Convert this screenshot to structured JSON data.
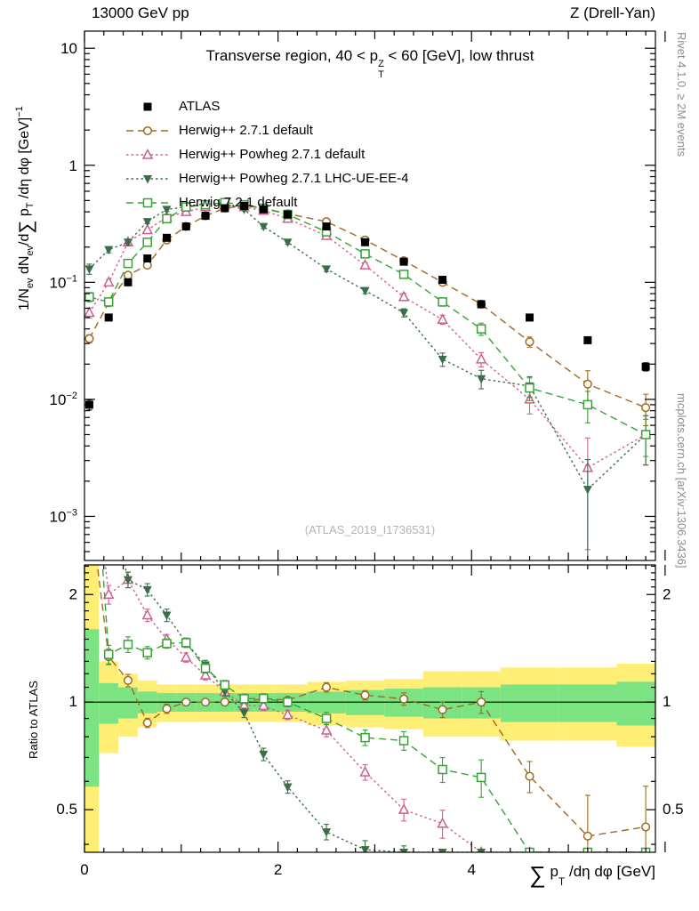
{
  "header": {
    "left": "13000 GeV pp",
    "right": "Z (Drell-Yan)"
  },
  "titles": {
    "pre": "Transverse region, 40 < p",
    "sup": "Z",
    "sub": "T",
    "post": " < 60 [GeV], low thrust"
  },
  "watermark": "(ATLAS_2019_I1736531)",
  "ratio_label": "Ratio to ATLAS",
  "side_notes": {
    "top": "Rivet 4.1.0, ≥ 2M events",
    "bottom": "mcplots.cern.ch [arXiv:1306.3436]"
  },
  "ylabel_parts": {
    "p1": "1/N",
    "s1": "ev",
    "p2": " dN",
    "s2": "ev",
    "p3": "/d",
    "sum": "∑",
    "p4": " p",
    "s3": "T",
    "p5": " /dη dφ  [GeV]",
    "e1": "−1"
  },
  "xlabel_parts": {
    "sum": "∑",
    "p": " p",
    "sub": "T",
    "rest": " /dη dφ [GeV]"
  },
  "chart_data": {
    "type": "line",
    "title": "Transverse region, 40 < pT^Z < 60 [GeV], low thrust",
    "xlabel": "sum pT /deta dphi [GeV]",
    "ylabel": "1/N_ev dN_ev/d sum pT /deta dphi [GeV]^-1",
    "ratio_ylabel": "Ratio to ATLAS",
    "legend_position": "top-left-inside",
    "grid": false,
    "x": [
      0.05,
      0.25,
      0.45,
      0.65,
      0.85,
      1.05,
      1.25,
      1.45,
      1.65,
      1.85,
      2.1,
      2.5,
      2.9,
      3.3,
      3.7,
      4.1,
      4.6,
      5.2,
      5.8
    ],
    "x_axis": {
      "min": 0,
      "max": 5.9,
      "label_ticks": [
        0,
        2,
        4
      ],
      "minor_step": 0.2
    },
    "main_axis": {
      "scale": "log",
      "min": 0.00042,
      "max": 14,
      "ticks": [
        {
          "v": 10,
          "base": "10",
          "exp": ""
        },
        {
          "v": 1,
          "base": "1",
          "exp": ""
        },
        {
          "v": 0.1,
          "base": "10",
          "exp": "−1"
        },
        {
          "v": 0.01,
          "base": "10",
          "exp": "−2"
        },
        {
          "v": 0.001,
          "base": "10",
          "exp": "−3"
        }
      ]
    },
    "ratio_axis": {
      "scale": "log",
      "min": 0.38,
      "max": 2.42,
      "ticks": [
        {
          "v": 0.5,
          "label": "0.5"
        },
        {
          "v": 1,
          "label": "1"
        },
        {
          "v": 2,
          "label": "2"
        }
      ]
    },
    "series": [
      {
        "id": "atlas",
        "label": "ATLAS",
        "color": "#000000",
        "marker": "square-filled",
        "line": "none",
        "is_reference": true,
        "values": [
          0.009,
          0.05,
          0.1,
          0.16,
          0.24,
          0.3,
          0.37,
          0.43,
          0.45,
          0.42,
          0.38,
          0.3,
          0.22,
          0.15,
          0.105,
          0.065,
          0.05,
          0.032,
          0.019
        ],
        "rel_err": [
          0.1,
          0.05,
          0.04,
          0.03,
          0.03,
          0.03,
          0.03,
          0.03,
          0.03,
          0.03,
          0.03,
          0.03,
          0.03,
          0.03,
          0.04,
          0.04,
          0.05,
          0.06,
          0.08
        ]
      },
      {
        "id": "herwigpp-271",
        "label": "Herwig++ 2.7.1 default",
        "color": "#a06820",
        "marker": "circle-open",
        "line": "dashed",
        "values": [
          0.033,
          0.067,
          0.115,
          0.14,
          0.23,
          0.3,
          0.37,
          0.43,
          0.45,
          0.43,
          0.385,
          0.33,
          0.23,
          0.153,
          0.1,
          0.065,
          0.031,
          0.0135,
          0.0085
        ],
        "rel_err": [
          0.08,
          0.05,
          0.04,
          0.03,
          0.03,
          0.02,
          0.02,
          0.02,
          0.02,
          0.02,
          0.02,
          0.03,
          0.03,
          0.04,
          0.05,
          0.07,
          0.1,
          0.3,
          0.3
        ]
      },
      {
        "id": "herwigpp-powheg-271",
        "label": "Herwig++ Powheg 2.7.1 default",
        "color": "#cf5f8e",
        "marker": "triangle-up-open",
        "line": "dotted",
        "values": [
          0.055,
          0.1,
          0.22,
          0.28,
          0.36,
          0.4,
          0.44,
          0.46,
          0.44,
          0.41,
          0.35,
          0.25,
          0.14,
          0.075,
          0.048,
          0.022,
          0.01,
          0.0026,
          0.005
        ],
        "rel_err": [
          0.1,
          0.06,
          0.05,
          0.04,
          0.03,
          0.03,
          0.03,
          0.03,
          0.03,
          0.03,
          0.03,
          0.04,
          0.05,
          0.07,
          0.09,
          0.14,
          0.25,
          0.8,
          0.45
        ]
      },
      {
        "id": "herwigpp-powheg-ee4",
        "label": "Herwig++ Powheg 2.7.1 LHC-UE-EE-4",
        "color": "#3b6e47",
        "marker": "triangle-down-filled",
        "line": "dotted",
        "values": [
          0.13,
          0.19,
          0.22,
          0.33,
          0.42,
          0.44,
          0.47,
          0.46,
          0.42,
          0.3,
          0.22,
          0.13,
          0.085,
          0.055,
          0.022,
          0.015,
          0.013,
          0.0017,
          0.005
        ],
        "rel_err": [
          0.1,
          0.06,
          0.05,
          0.04,
          0.04,
          0.03,
          0.03,
          0.03,
          0.03,
          0.04,
          0.04,
          0.05,
          0.06,
          0.08,
          0.13,
          0.18,
          0.2,
          0.8,
          0.45
        ]
      },
      {
        "id": "herwig-721",
        "label": "Herwig 7.2.1 default",
        "color": "#36a336",
        "marker": "square-open",
        "line": "dashed",
        "values": [
          0.075,
          0.068,
          0.145,
          0.22,
          0.35,
          0.44,
          0.46,
          0.48,
          0.46,
          0.43,
          0.38,
          0.27,
          0.175,
          0.117,
          0.068,
          0.04,
          0.0125,
          0.009,
          0.005
        ],
        "rel_err": [
          0.09,
          0.06,
          0.05,
          0.04,
          0.03,
          0.03,
          0.03,
          0.03,
          0.03,
          0.03,
          0.03,
          0.04,
          0.05,
          0.06,
          0.08,
          0.12,
          0.22,
          0.3,
          0.35
        ]
      }
    ],
    "ratio_bands": {
      "yellow_color": "#ffee75",
      "green_color": "#7be382",
      "edges": [
        0,
        0.15,
        0.35,
        0.55,
        0.75,
        0.95,
        1.15,
        1.35,
        1.55,
        1.75,
        1.95,
        2.3,
        2.7,
        3.1,
        3.5,
        3.9,
        4.3,
        4.9,
        5.5,
        5.9
      ],
      "yellow_lo": [
        0.38,
        0.72,
        0.8,
        0.85,
        0.88,
        0.88,
        0.88,
        0.88,
        0.88,
        0.88,
        0.88,
        0.86,
        0.85,
        0.84,
        0.8,
        0.8,
        0.78,
        0.78,
        0.75
      ],
      "yellow_hi": [
        2.42,
        1.3,
        1.2,
        1.15,
        1.12,
        1.12,
        1.12,
        1.12,
        1.12,
        1.12,
        1.12,
        1.14,
        1.15,
        1.16,
        1.22,
        1.22,
        1.25,
        1.25,
        1.28
      ],
      "green_lo": [
        0.58,
        0.87,
        0.9,
        0.93,
        0.94,
        0.94,
        0.94,
        0.94,
        0.94,
        0.94,
        0.94,
        0.93,
        0.92,
        0.91,
        0.9,
        0.9,
        0.88,
        0.88,
        0.86
      ],
      "green_hi": [
        1.6,
        1.13,
        1.1,
        1.07,
        1.06,
        1.06,
        1.06,
        1.06,
        1.06,
        1.06,
        1.06,
        1.07,
        1.08,
        1.09,
        1.1,
        1.1,
        1.12,
        1.12,
        1.14
      ]
    }
  }
}
